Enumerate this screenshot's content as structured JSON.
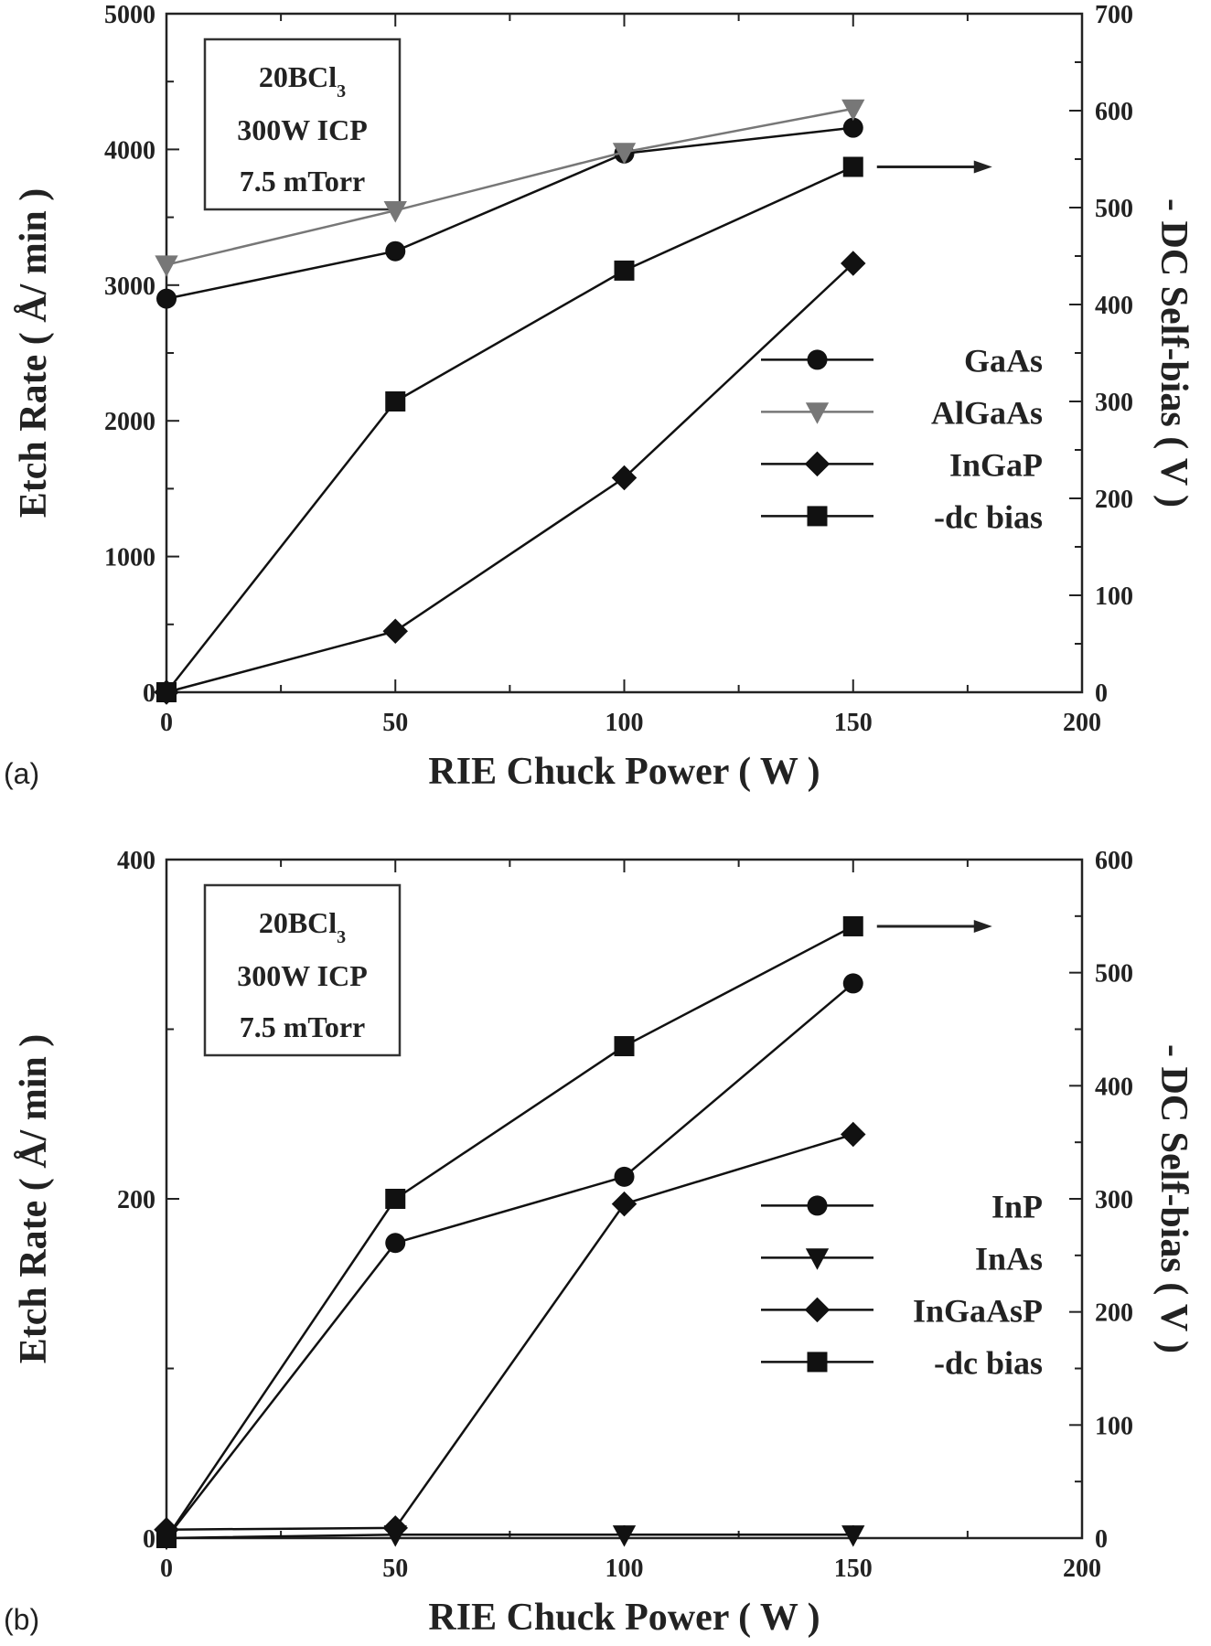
{
  "chart_data": [
    {
      "type": "line",
      "panel_label": "(a)",
      "xlabel": "RIE Chuck Power ( W )",
      "ylabel": "Etch Rate ( Å/ min )",
      "y2label": "- DC  Self-bias ( V )",
      "xlim": [
        0,
        200
      ],
      "ylim": [
        0,
        5000
      ],
      "y2lim": [
        0,
        700
      ],
      "xticks": [
        0,
        50,
        100,
        150,
        200
      ],
      "yticks": [
        0,
        1000,
        2000,
        3000,
        4000,
        5000
      ],
      "y2ticks": [
        0,
        100,
        200,
        300,
        400,
        500,
        600,
        700
      ],
      "condition_box": {
        "line1_main": "20BCl",
        "line1_sub": "3",
        "line2": "300W ICP",
        "line3": "7.5 mTorr"
      },
      "legend_position": "center-right",
      "series": [
        {
          "name": "GaAs",
          "marker": "circle",
          "axis": "left",
          "color": "#111111",
          "x": [
            0,
            50,
            100,
            150
          ],
          "values": [
            2900,
            3250,
            3970,
            4160
          ]
        },
        {
          "name": "AlGaAs",
          "marker": "triangle-down",
          "axis": "left",
          "color": "#777777",
          "x": [
            0,
            50,
            100,
            150
          ],
          "values": [
            3150,
            3550,
            3980,
            4300
          ]
        },
        {
          "name": "InGaP",
          "marker": "diamond",
          "axis": "left",
          "color": "#111111",
          "x": [
            0,
            50,
            100,
            150
          ],
          "values": [
            0,
            450,
            1580,
            3160
          ]
        },
        {
          "name": "-dc bias",
          "marker": "square",
          "axis": "right",
          "color": "#111111",
          "x": [
            0,
            50,
            100,
            150
          ],
          "values": [
            0,
            300,
            435,
            542
          ]
        }
      ]
    },
    {
      "type": "line",
      "panel_label": "(b)",
      "xlabel": "RIE Chuck Power ( W )",
      "ylabel": "Etch Rate ( Å/ min )",
      "y2label": "- DC  Self-bias ( V )",
      "xlim": [
        0,
        200
      ],
      "ylim": [
        0,
        400
      ],
      "y2lim": [
        0,
        600
      ],
      "xticks": [
        0,
        50,
        100,
        150,
        200
      ],
      "yticks": [
        0,
        200,
        400
      ],
      "y2ticks": [
        0,
        100,
        200,
        300,
        400,
        500,
        600
      ],
      "condition_box": {
        "line1_main": "20BCl",
        "line1_sub": "3",
        "line2": "300W ICP",
        "line3": "7.5 mTorr"
      },
      "legend_position": "center-right",
      "series": [
        {
          "name": "InP",
          "marker": "circle",
          "axis": "left",
          "color": "#111111",
          "x": [
            0,
            50,
            100,
            150
          ],
          "values": [
            0,
            174,
            213,
            327
          ]
        },
        {
          "name": "InAs",
          "marker": "triangle-down",
          "axis": "left",
          "color": "#111111",
          "x": [
            0,
            50,
            100,
            150
          ],
          "values": [
            0,
            2,
            2,
            2
          ]
        },
        {
          "name": "InGaAsP",
          "marker": "diamond",
          "axis": "left",
          "color": "#111111",
          "x": [
            0,
            50,
            100,
            150
          ],
          "values": [
            5,
            6,
            197,
            238
          ]
        },
        {
          "name": "-dc bias",
          "marker": "square",
          "axis": "right",
          "color": "#111111",
          "x": [
            0,
            50,
            100,
            150
          ],
          "values": [
            0,
            300,
            435,
            541
          ]
        }
      ]
    }
  ]
}
